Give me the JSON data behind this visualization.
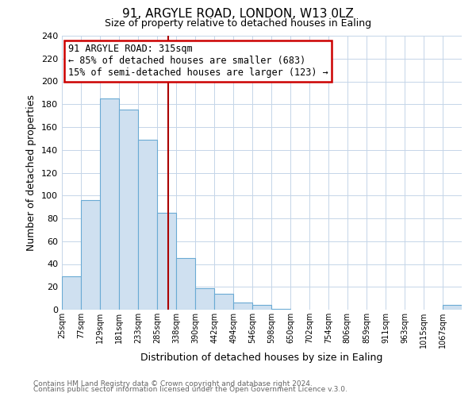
{
  "title": "91, ARGYLE ROAD, LONDON, W13 0LZ",
  "subtitle": "Size of property relative to detached houses in Ealing",
  "xlabel": "Distribution of detached houses by size in Ealing",
  "ylabel": "Number of detached properties",
  "bin_labels": [
    "25sqm",
    "77sqm",
    "129sqm",
    "181sqm",
    "233sqm",
    "285sqm",
    "338sqm",
    "390sqm",
    "442sqm",
    "494sqm",
    "546sqm",
    "598sqm",
    "650sqm",
    "702sqm",
    "754sqm",
    "806sqm",
    "859sqm",
    "911sqm",
    "963sqm",
    "1015sqm",
    "1067sqm"
  ],
  "bar_values": [
    29,
    96,
    185,
    175,
    149,
    85,
    45,
    19,
    14,
    6,
    4,
    1,
    0,
    0,
    0,
    0,
    0,
    0,
    0,
    0,
    4
  ],
  "bar_color": "#cfe0f0",
  "bar_edge_color": "#6aaad4",
  "ylim": [
    0,
    240
  ],
  "yticks": [
    0,
    20,
    40,
    60,
    80,
    100,
    120,
    140,
    160,
    180,
    200,
    220,
    240
  ],
  "property_value": 315,
  "bin_edges": [
    25,
    77,
    129,
    181,
    233,
    285,
    338,
    390,
    442,
    494,
    546,
    598,
    650,
    702,
    754,
    806,
    859,
    911,
    963,
    1015,
    1067,
    1119
  ],
  "vline_color": "#aa0000",
  "annotation_title": "91 ARGYLE ROAD: 315sqm",
  "annotation_line1": "← 85% of detached houses are smaller (683)",
  "annotation_line2": "15% of semi-detached houses are larger (123) →",
  "annotation_box_color": "#ffffff",
  "annotation_box_edge": "#cc0000",
  "footer1": "Contains HM Land Registry data © Crown copyright and database right 2024.",
  "footer2": "Contains public sector information licensed under the Open Government Licence v.3.0.",
  "background_color": "#ffffff",
  "grid_color": "#c5d5e8"
}
